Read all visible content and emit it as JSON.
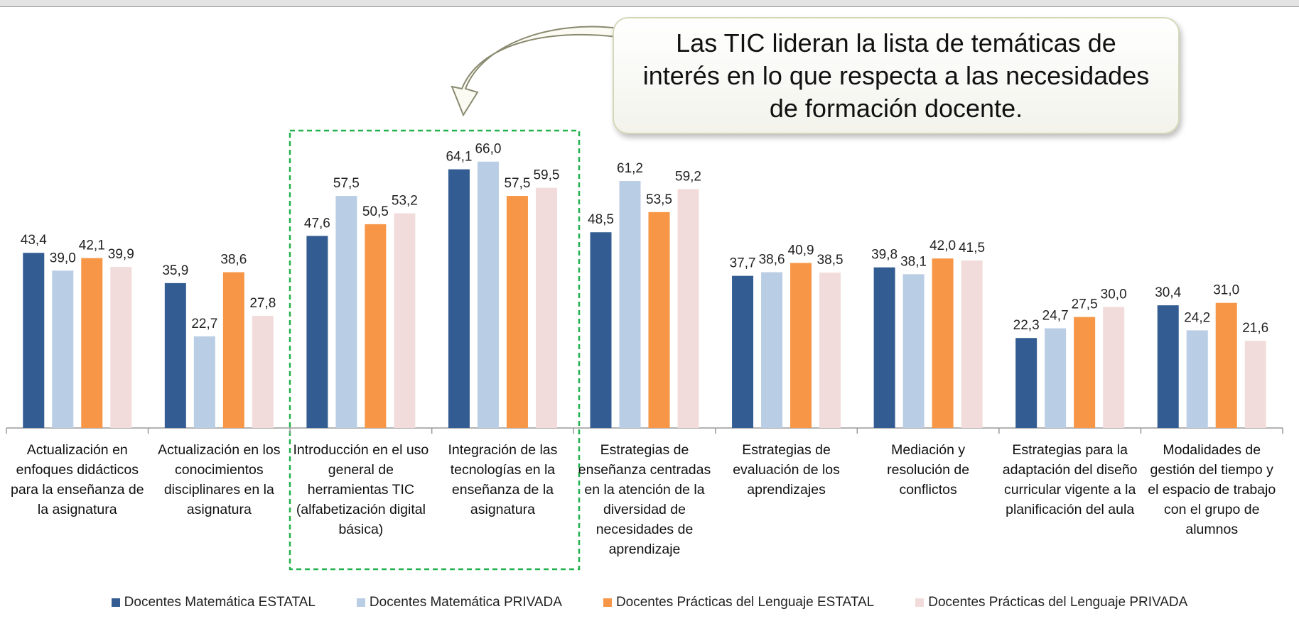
{
  "chart_data": {
    "type": "bar",
    "annotation": "Las TIC lideran la lista de temáticas de interés en lo que respecta a las necesidades de formación docente.",
    "categories": [
      "Actualización en enfoques didácticos para la enseñanza de la asignatura",
      "Actualización en los conocimientos disciplinares en la asignatura",
      "Introducción en el uso general de herramientas TIC (alfabetización digital básica)",
      "Integración de las tecnologías en la enseñanza de la asignatura",
      "Estrategias de enseñanza centradas en la atención de la diversidad de necesidades de aprendizaje",
      "Estrategias de evaluación de los aprendizajes",
      "Mediación y resolución de conflictos",
      "Estrategias para la adaptación del diseño curricular vigente a la planificación del aula",
      "Modalidades de gestión del tiempo y el espacio de trabajo con el grupo de alumnos"
    ],
    "series": [
      {
        "name": "Docentes Matemática ESTATAL",
        "color": "#335d92",
        "values": [
          43.4,
          35.9,
          47.6,
          64.1,
          48.5,
          37.7,
          39.8,
          22.3,
          30.4
        ],
        "value_labels": [
          "43,4",
          "35,9",
          "47,6",
          "64,1",
          "48,5",
          "37,7",
          "39,8",
          "22,3",
          "30,4"
        ]
      },
      {
        "name": "Docentes Matemática PRIVADA",
        "color": "#b9cde5",
        "values": [
          39.0,
          22.7,
          57.5,
          66.0,
          61.2,
          38.6,
          38.1,
          24.7,
          24.2
        ],
        "value_labels": [
          "39,0",
          "22,7",
          "57,5",
          "66,0",
          "61,2",
          "38,6",
          "38,1",
          "24,7",
          "24,2"
        ]
      },
      {
        "name": "Docentes Prácticas del Lenguaje ESTATAL",
        "color": "#f79646",
        "values": [
          42.1,
          38.6,
          50.5,
          57.5,
          53.5,
          40.9,
          42.0,
          27.5,
          31.0
        ],
        "value_labels": [
          "42,1",
          "38,6",
          "50,5",
          "57,5",
          "53,5",
          "40,9",
          "42,0",
          "27,5",
          "31,0"
        ]
      },
      {
        "name": "Docentes Prácticas del Lenguaje PRIVADA",
        "color": "#f2dcdb",
        "values": [
          39.9,
          27.8,
          53.2,
          59.5,
          59.2,
          38.5,
          41.5,
          30.0,
          21.6
        ],
        "value_labels": [
          "39,9",
          "27,8",
          "53,2",
          "59,5",
          "59,2",
          "38,5",
          "41,5",
          "30,0",
          "21,6"
        ]
      }
    ],
    "ylim": [
      0,
      70
    ]
  }
}
